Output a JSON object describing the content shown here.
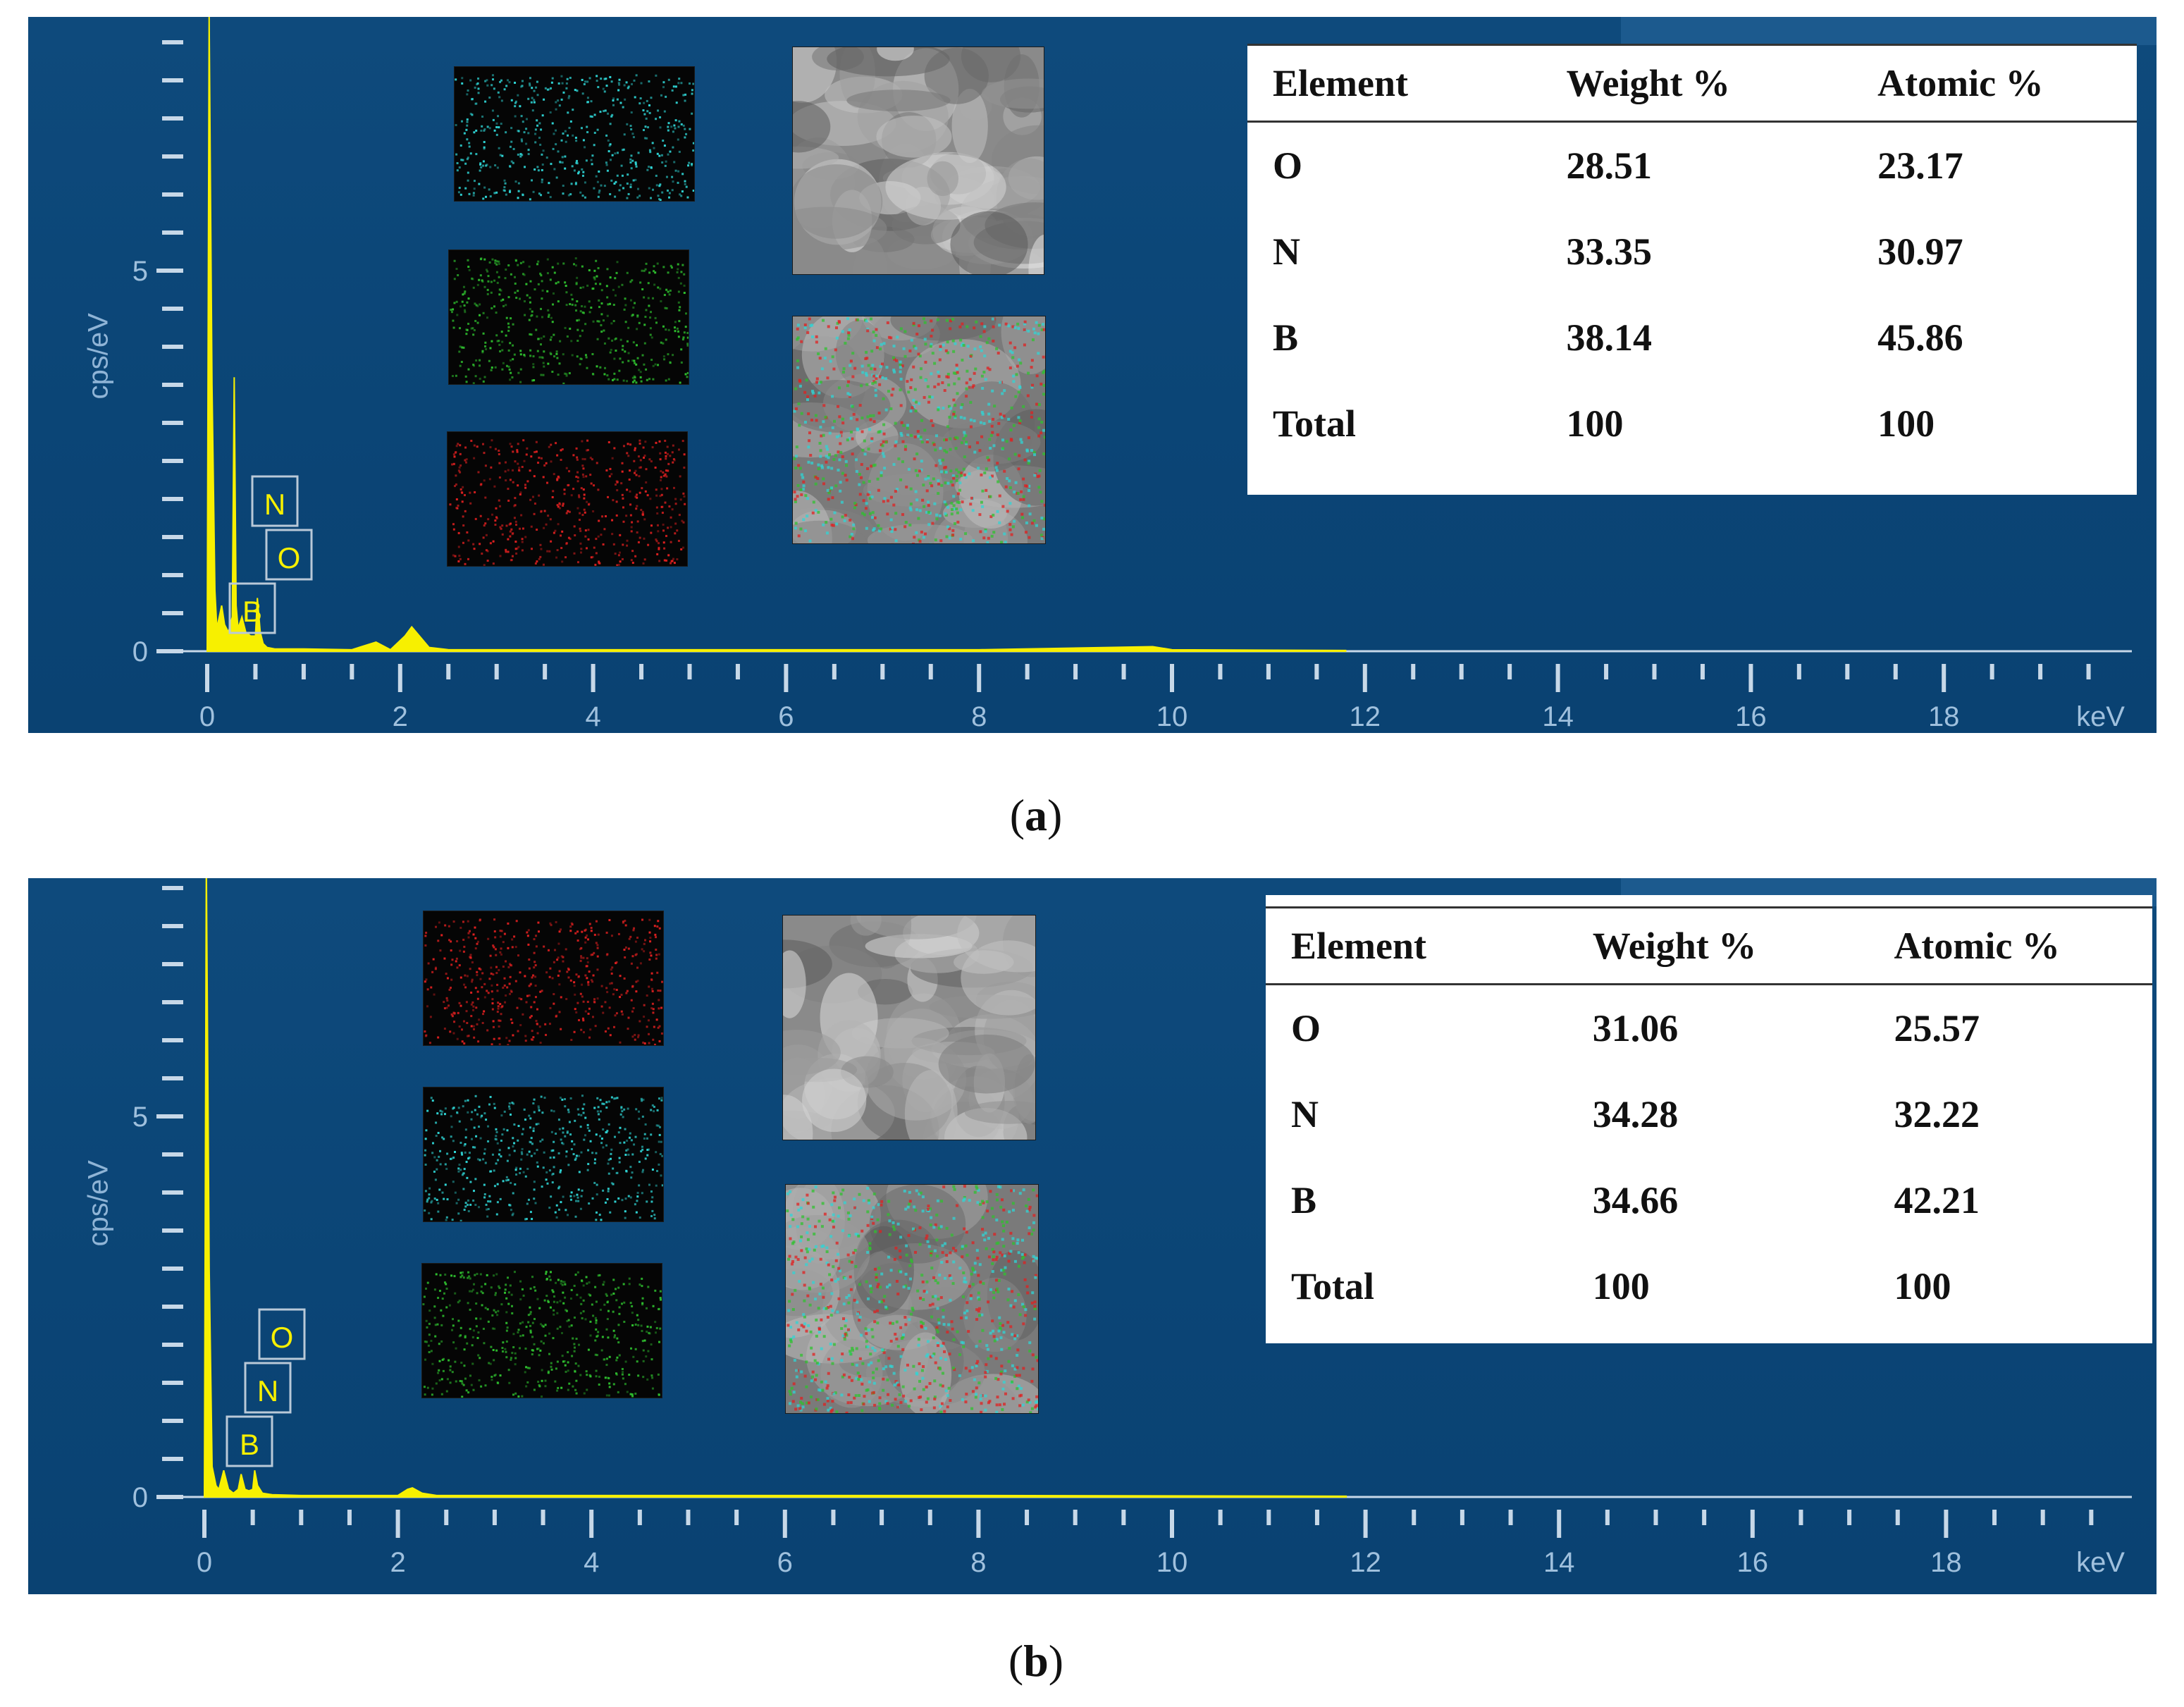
{
  "panels": [
    {
      "caption_open": "(",
      "caption_letter": "a",
      "caption_close": ")",
      "colors": {
        "spectrum": "#f7f000",
        "map1": "#2fd6d6",
        "map2": "#2fc22f",
        "map3": "#e02020"
      },
      "peak_labels": [
        "N",
        "O",
        "B"
      ],
      "table": {
        "headers": [
          "Element",
          "Weight %",
          "Atomic %"
        ],
        "rows": [
          [
            "O",
            "28.51",
            "23.17"
          ],
          [
            "N",
            "33.35",
            "30.97"
          ],
          [
            "B",
            "38.14",
            "45.86"
          ],
          [
            "Total",
            "100",
            "100"
          ]
        ]
      }
    },
    {
      "caption_open": "(",
      "caption_letter": "b",
      "caption_close": ")",
      "colors": {
        "spectrum": "#f7f000",
        "map1": "#e02020",
        "map2": "#2fd6d6",
        "map3": "#2fc22f"
      },
      "peak_labels": [
        "O",
        "N",
        "B"
      ],
      "table": {
        "headers": [
          "Element",
          "Weight %",
          "Atomic %"
        ],
        "rows": [
          [
            "O",
            "31.06",
            "25.57"
          ],
          [
            "N",
            "34.28",
            "32.22"
          ],
          [
            "B",
            "34.66",
            "42.21"
          ],
          [
            "Total",
            "100",
            "100"
          ]
        ]
      }
    }
  ],
  "chart_data": [
    {
      "type": "line",
      "xlabel": "keV",
      "ylabel": "cps/eV",
      "xlim": [
        0,
        20
      ],
      "ylim": [
        0,
        8.5
      ],
      "x_ticks": [
        "0",
        "2",
        "4",
        "6",
        "8",
        "10",
        "12",
        "14",
        "16",
        "18"
      ],
      "y_ticks": [
        "0",
        "5"
      ],
      "series": [
        {
          "x": [
            0,
            0.02,
            0.05,
            0.08,
            0.1,
            0.15,
            0.18,
            0.22,
            0.26,
            0.28,
            0.3,
            0.32,
            0.36,
            0.4,
            0.45,
            0.5,
            0.52,
            0.55,
            0.58,
            0.62,
            0.7,
            1.0,
            1.5,
            1.75,
            1.9,
            2.05,
            2.12,
            2.2,
            2.3,
            2.5,
            4,
            8,
            9.8,
            10,
            11.8
          ],
          "y": [
            0,
            8.4,
            3.5,
            0.8,
            0.3,
            0.6,
            0.35,
            0.25,
            0.45,
            3.6,
            0.6,
            0.3,
            0.45,
            0.25,
            0.2,
            0.2,
            0.7,
            0.25,
            0.1,
            0.05,
            0.03,
            0.03,
            0.02,
            0.12,
            0.02,
            0.2,
            0.32,
            0.2,
            0.05,
            0.02,
            0.02,
            0.02,
            0.06,
            0.02,
            0.01
          ]
        }
      ],
      "annotations": [
        "N",
        "O",
        "B"
      ]
    },
    {
      "type": "line",
      "xlabel": "keV",
      "ylabel": "cps/eV",
      "xlim": [
        0,
        20
      ],
      "ylim": [
        0,
        8.5
      ],
      "x_ticks": [
        "0",
        "2",
        "4",
        "6",
        "8",
        "10",
        "12",
        "14",
        "16",
        "18"
      ],
      "y_ticks": [
        "0",
        "5"
      ],
      "series": [
        {
          "x": [
            0,
            0.02,
            0.05,
            0.08,
            0.12,
            0.15,
            0.2,
            0.25,
            0.3,
            0.35,
            0.38,
            0.42,
            0.46,
            0.5,
            0.52,
            0.55,
            0.6,
            0.7,
            1.0,
            1.5,
            2.0,
            2.1,
            2.15,
            2.25,
            2.4,
            4,
            8,
            11.8
          ],
          "y": [
            0,
            8.4,
            3.0,
            0.4,
            0.15,
            0.1,
            0.35,
            0.1,
            0.05,
            0.1,
            0.3,
            0.1,
            0.08,
            0.1,
            0.35,
            0.15,
            0.05,
            0.03,
            0.02,
            0.02,
            0.02,
            0.1,
            0.12,
            0.05,
            0.02,
            0.02,
            0.02,
            0.01
          ]
        }
      ],
      "annotations": [
        "O",
        "N",
        "B"
      ]
    }
  ]
}
